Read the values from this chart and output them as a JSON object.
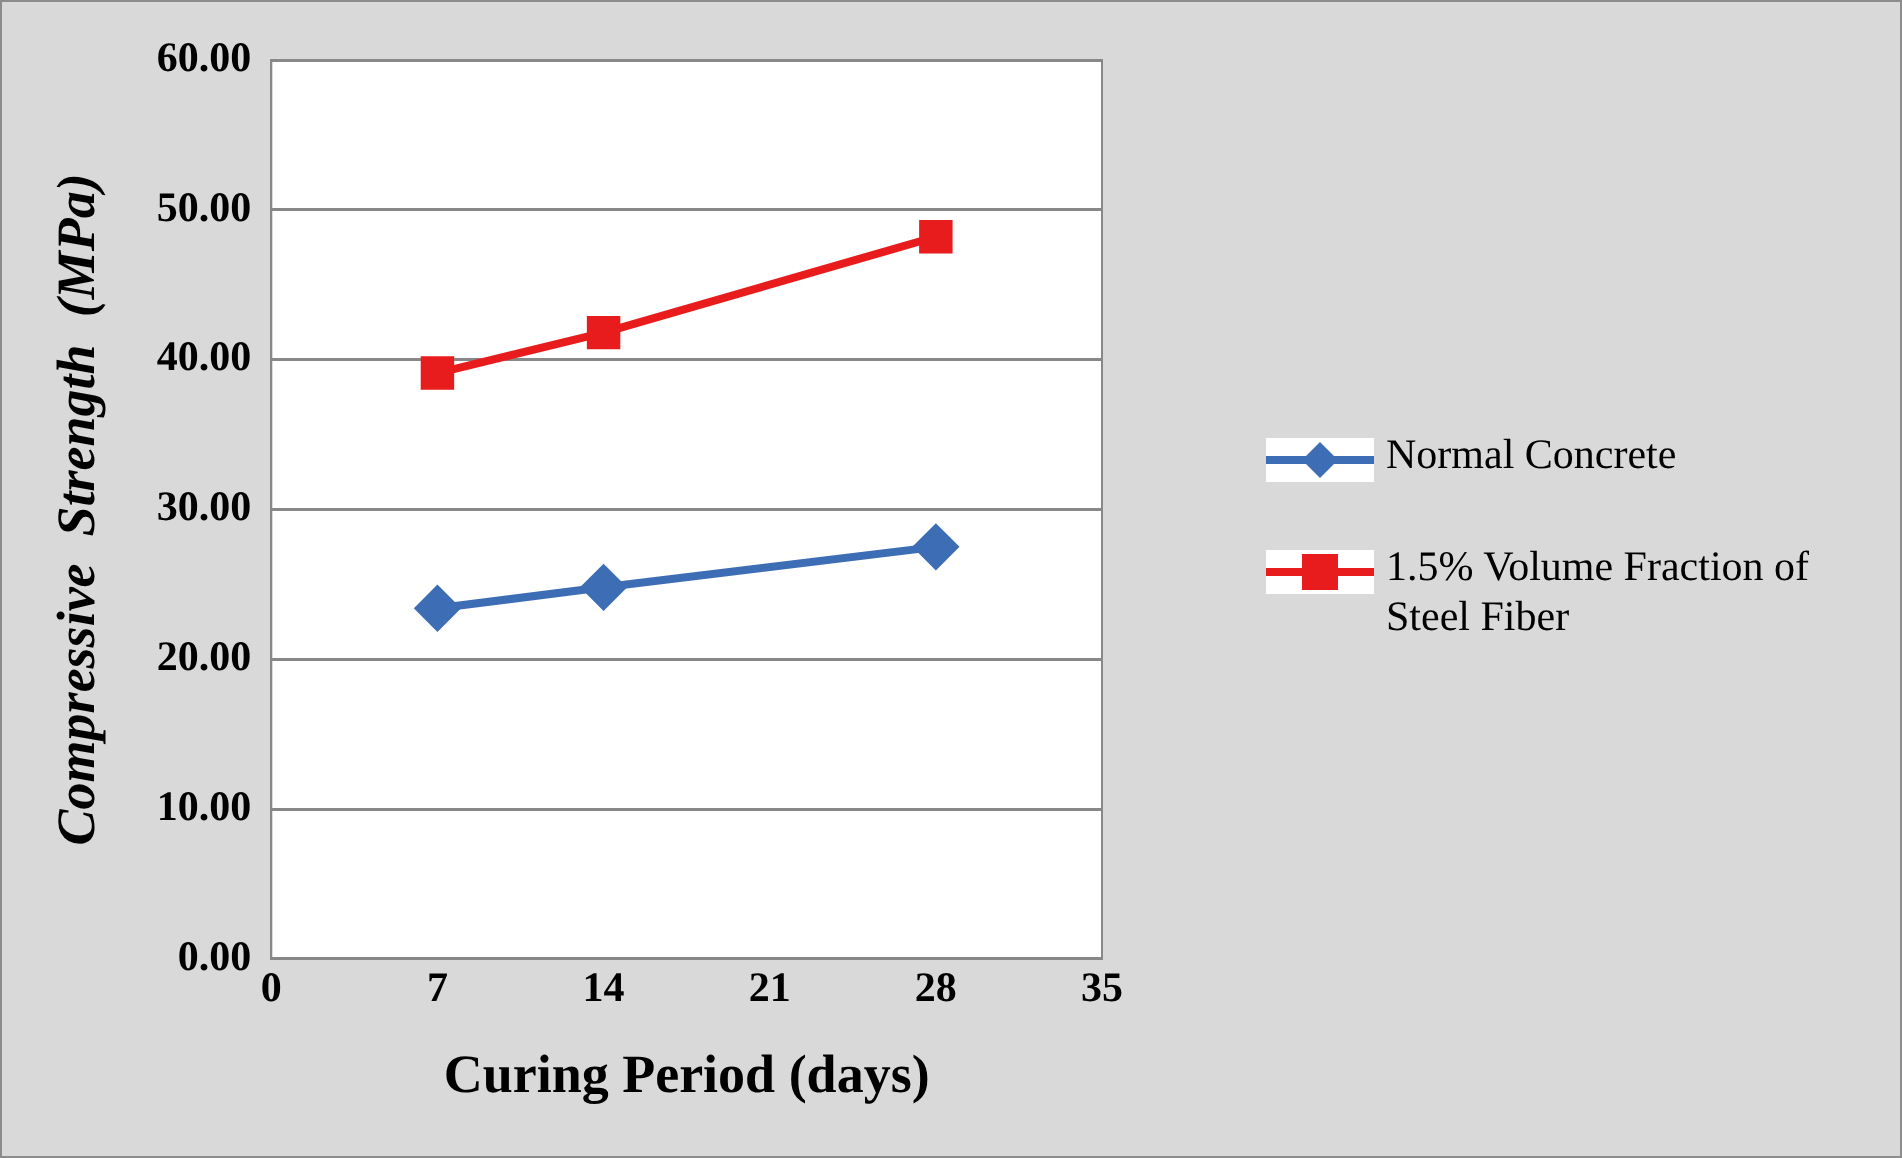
{
  "chart_data": {
    "type": "line",
    "xlabel": "Curing Period (days)",
    "ylabel": "Compressive  Strength  (MPa)",
    "x": [
      7,
      14,
      28
    ],
    "series": [
      {
        "name": "Normal Concrete",
        "color": "#3d6db5",
        "marker": "diamond",
        "values": [
          23.4,
          24.8,
          27.5
        ]
      },
      {
        "name": "1.5% Volume Fraction of Steel Fiber",
        "color": "#e81c1c",
        "marker": "square",
        "values": [
          39.1,
          41.8,
          48.2
        ]
      }
    ],
    "xlim": [
      0,
      35
    ],
    "xticks": [
      0,
      7,
      14,
      21,
      28,
      35
    ],
    "ylim": [
      0,
      60
    ],
    "yticks": [
      {
        "value": 0,
        "label": "0.00"
      },
      {
        "value": 10,
        "label": "10.00"
      },
      {
        "value": 20,
        "label": "20.00"
      },
      {
        "value": 30,
        "label": "30.00"
      },
      {
        "value": 40,
        "label": "40.00"
      },
      {
        "value": 50,
        "label": "50.00"
      },
      {
        "value": 60,
        "label": "60.00"
      }
    ],
    "grid": "y",
    "legend": "right",
    "line_style": "solid"
  }
}
